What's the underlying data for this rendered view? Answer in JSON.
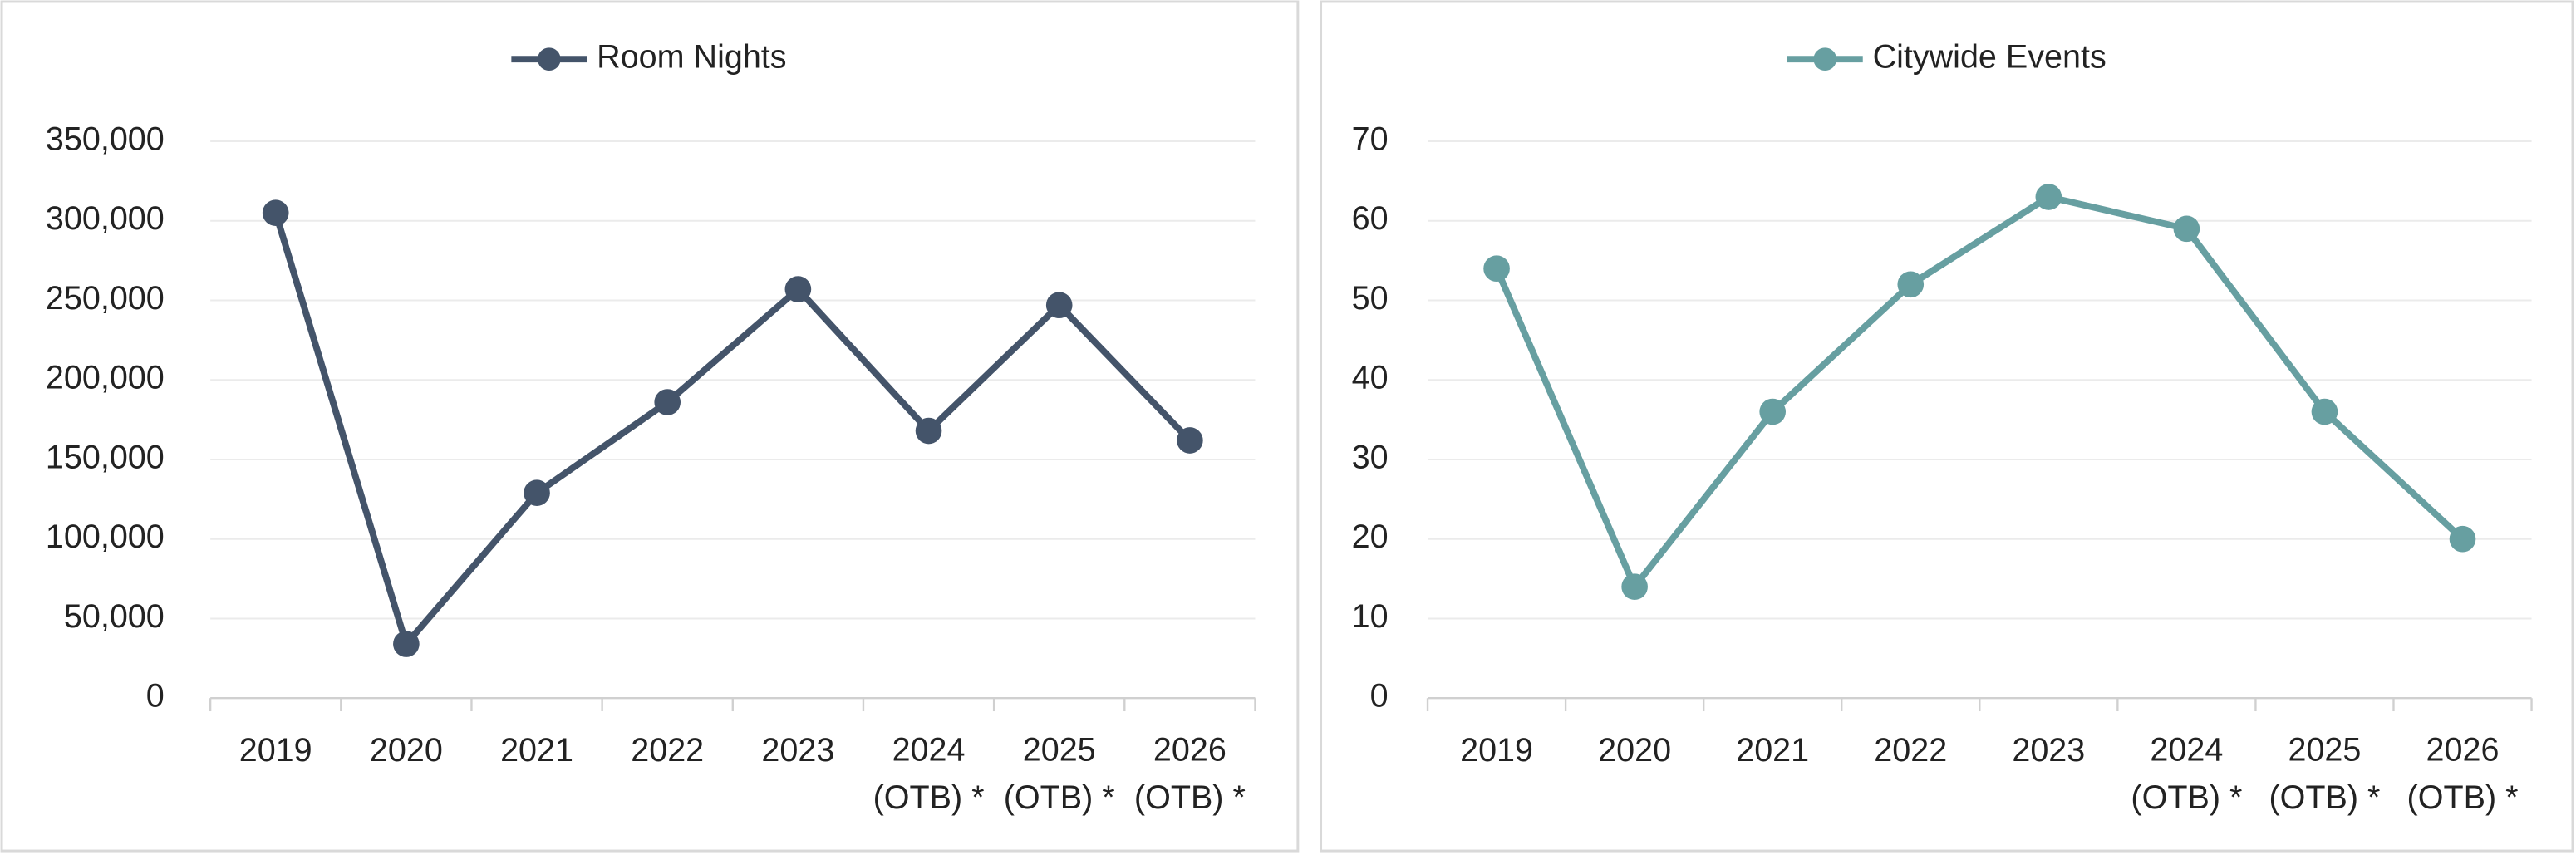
{
  "chart_data": [
    {
      "type": "line",
      "categories": [
        "2019",
        "2020",
        "2021",
        "2022",
        "2023",
        "2024 (OTB) *",
        "2025 (OTB) *",
        "2026 (OTB) *"
      ],
      "series": [
        {
          "name": "Room Nights",
          "color": "#44546a",
          "values": [
            305000,
            34000,
            129000,
            186000,
            257000,
            168000,
            247000,
            162000
          ]
        }
      ],
      "ylim": [
        0,
        350000
      ],
      "yticks": [
        0,
        {
          "value": 50000,
          "label": "50,000"
        },
        {
          "value": 100000,
          "label": "100,000"
        },
        {
          "value": 150000,
          "label": "150,000"
        },
        {
          "value": 200000,
          "label": "200,000"
        },
        {
          "value": 250000,
          "label": "250,000"
        },
        {
          "value": 300000,
          "label": "300,000"
        },
        {
          "value": 350000,
          "label": "350,000"
        }
      ],
      "grid": true,
      "legend": "top"
    },
    {
      "type": "line",
      "categories": [
        "2019",
        "2020",
        "2021",
        "2022",
        "2023",
        "2024 (OTB) *",
        "2025 (OTB) *",
        "2026 (OTB) *"
      ],
      "series": [
        {
          "name": "Citywide Events",
          "color": "#679fa1",
          "values": [
            54,
            14,
            36,
            52,
            63,
            59,
            36,
            20
          ]
        }
      ],
      "ylim": [
        0,
        70
      ],
      "yticks": [
        0,
        10,
        20,
        30,
        40,
        50,
        60,
        70
      ],
      "grid": true,
      "legend": "top"
    }
  ]
}
